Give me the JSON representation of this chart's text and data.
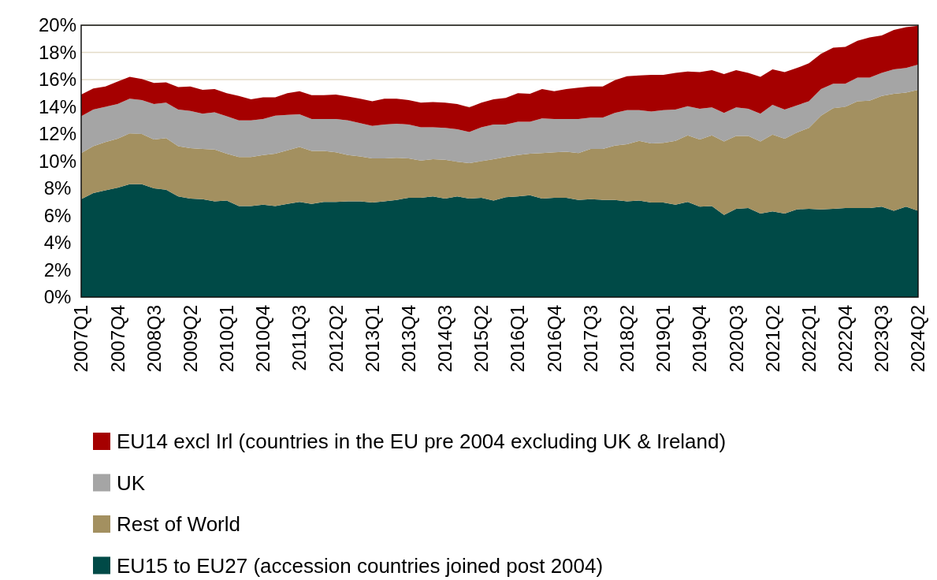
{
  "chart_data": {
    "type": "area",
    "stacked": true,
    "categories": [
      "2007Q1",
      null,
      null,
      "2007Q4",
      null,
      null,
      "2008Q3",
      null,
      null,
      "2009Q2",
      null,
      null,
      "2010Q1",
      null,
      null,
      "2010Q4",
      null,
      null,
      "2011Q3",
      null,
      null,
      "2012Q2",
      null,
      null,
      "2013Q1",
      null,
      null,
      "2013Q4",
      null,
      null,
      "2014Q3",
      null,
      null,
      "2015Q2",
      null,
      null,
      "2016Q1",
      null,
      null,
      "2016Q4",
      null,
      null,
      "2017Q3",
      null,
      null,
      "2018Q2",
      null,
      null,
      "2019Q1",
      null,
      null,
      "2019Q4",
      null,
      null,
      "2020Q3",
      null,
      null,
      "2021Q2",
      null,
      null,
      "2022Q1",
      null,
      null,
      "2022Q4",
      null,
      null,
      "2023Q3",
      null,
      null,
      "2024Q2"
    ],
    "series": [
      {
        "name": "EU15 to EU27 (accession countries joined post 2004)",
        "color": "#004a47",
        "values": [
          7.2,
          7.65,
          7.85,
          8.05,
          8.3,
          8.3,
          8.0,
          7.9,
          7.4,
          7.25,
          7.2,
          7.05,
          7.1,
          6.7,
          6.7,
          6.8,
          6.7,
          6.85,
          7.0,
          6.85,
          7.0,
          7.0,
          7.05,
          7.05,
          6.95,
          7.05,
          7.15,
          7.3,
          7.3,
          7.4,
          7.25,
          7.4,
          7.25,
          7.3,
          7.1,
          7.35,
          7.4,
          7.5,
          7.25,
          7.3,
          7.3,
          7.15,
          7.2,
          7.15,
          7.15,
          7.05,
          7.1,
          6.95,
          6.95,
          6.8,
          7.0,
          6.65,
          6.7,
          6.05,
          6.5,
          6.55,
          6.15,
          6.3,
          6.15,
          6.45,
          6.5,
          6.45,
          6.5,
          6.55,
          6.55,
          6.55,
          6.65,
          6.35,
          6.65,
          6.35
        ]
      },
      {
        "name": "Rest of World",
        "color": "#a39060",
        "values": [
          3.4,
          3.45,
          3.55,
          3.6,
          3.75,
          3.7,
          3.6,
          3.8,
          3.7,
          3.7,
          3.7,
          3.8,
          3.45,
          3.6,
          3.6,
          3.65,
          3.85,
          3.95,
          4.05,
          3.9,
          3.75,
          3.65,
          3.4,
          3.3,
          3.25,
          3.15,
          3.1,
          2.9,
          2.75,
          2.75,
          2.85,
          2.55,
          2.6,
          2.7,
          3.05,
          2.95,
          3.05,
          3.05,
          3.35,
          3.35,
          3.4,
          3.45,
          3.7,
          3.75,
          4.0,
          4.2,
          4.4,
          4.35,
          4.4,
          4.7,
          4.9,
          4.95,
          5.2,
          5.4,
          5.35,
          5.3,
          5.3,
          5.65,
          5.5,
          5.65,
          5.95,
          6.9,
          7.4,
          7.45,
          7.85,
          7.9,
          8.15,
          8.6,
          8.4,
          8.9
        ]
      },
      {
        "name": "UK",
        "color": "#a5a5a5",
        "values": [
          2.7,
          2.7,
          2.6,
          2.55,
          2.55,
          2.5,
          2.6,
          2.6,
          2.7,
          2.75,
          2.6,
          2.75,
          2.75,
          2.7,
          2.7,
          2.65,
          2.8,
          2.6,
          2.4,
          2.35,
          2.35,
          2.45,
          2.55,
          2.45,
          2.4,
          2.5,
          2.5,
          2.5,
          2.45,
          2.35,
          2.35,
          2.4,
          2.3,
          2.5,
          2.55,
          2.4,
          2.45,
          2.35,
          2.55,
          2.45,
          2.4,
          2.5,
          2.3,
          2.3,
          2.4,
          2.5,
          2.25,
          2.35,
          2.4,
          2.3,
          2.15,
          2.25,
          2.05,
          2.1,
          2.1,
          2.0,
          2.05,
          2.2,
          2.15,
          2.0,
          1.95,
          1.95,
          1.8,
          1.7,
          1.75,
          1.7,
          1.7,
          1.8,
          1.8,
          1.85
        ]
      },
      {
        "name": "EU14 excl Irl (countries in the EU pre 2004 excluding UK & Ireland)",
        "color": "#a50000",
        "values": [
          1.6,
          1.55,
          1.5,
          1.65,
          1.6,
          1.55,
          1.55,
          1.5,
          1.65,
          1.8,
          1.75,
          1.7,
          1.7,
          1.8,
          1.55,
          1.6,
          1.35,
          1.6,
          1.7,
          1.75,
          1.75,
          1.8,
          1.75,
          1.8,
          1.8,
          1.9,
          1.85,
          1.8,
          1.8,
          1.85,
          1.85,
          1.85,
          1.8,
          1.8,
          1.85,
          1.95,
          2.1,
          2.05,
          2.15,
          2.05,
          2.2,
          2.3,
          2.3,
          2.3,
          2.4,
          2.5,
          2.55,
          2.7,
          2.6,
          2.7,
          2.55,
          2.7,
          2.75,
          2.85,
          2.75,
          2.65,
          2.7,
          2.6,
          2.75,
          2.75,
          2.8,
          2.6,
          2.65,
          2.7,
          2.7,
          2.95,
          2.75,
          2.9,
          3.0,
          2.85
        ]
      }
    ],
    "ylim": [
      0,
      20
    ],
    "yticks": [
      {
        "value": 0,
        "label": "0%"
      },
      {
        "value": 2,
        "label": "2%"
      },
      {
        "value": 4,
        "label": "4%"
      },
      {
        "value": 6,
        "label": "6%"
      },
      {
        "value": 8,
        "label": "8%"
      },
      {
        "value": 10,
        "label": "10%"
      },
      {
        "value": 12,
        "label": "12%"
      },
      {
        "value": 14,
        "label": "14%"
      },
      {
        "value": 16,
        "label": "16%"
      },
      {
        "value": 18,
        "label": "18%"
      },
      {
        "value": 20,
        "label": "20%"
      }
    ],
    "grid": "y",
    "legend": "bottom"
  }
}
